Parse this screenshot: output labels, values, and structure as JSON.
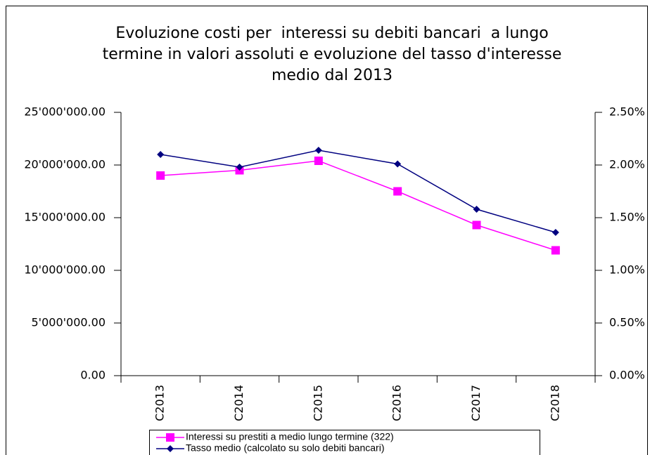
{
  "chart_data": {
    "type": "line",
    "title": [
      "Evoluzione costi per  interessi su debiti bancari  a lungo",
      "termine in valori assoluti e evoluzione del tasso d'interesse",
      "medio dal 2013"
    ],
    "categories": [
      "C2013",
      "C2014",
      "C2015",
      "C2016",
      "C2017",
      "C2018"
    ],
    "series": [
      {
        "name": "Interessi su prestiti a medio lungo termine (322)",
        "color": "#ff00ff",
        "marker": "square",
        "values": [
          19000000,
          19500000,
          20400000,
          17500000,
          14300000,
          11900000
        ]
      },
      {
        "name": "Tasso medio (calcolato su solo debiti bancari)",
        "color": "#000080",
        "marker": "diamond",
        "axis": "y2",
        "values": [
          2.1,
          1.98,
          2.14,
          2.01,
          1.58,
          1.36
        ]
      }
    ],
    "ylim": [
      0,
      25000000
    ],
    "yticks": [
      {
        "value": 0,
        "label": "0.00"
      },
      {
        "value": 5000000,
        "label": "5'000'000.00"
      },
      {
        "value": 10000000,
        "label": "10'000'000.00"
      },
      {
        "value": 15000000,
        "label": "15'000'000.00"
      },
      {
        "value": 20000000,
        "label": "20'000'000.00"
      },
      {
        "value": 25000000,
        "label": "25'000'000.00"
      }
    ],
    "y2lim": [
      0,
      2.5
    ],
    "y2ticks": [
      {
        "value": 0,
        "label": "0.00%"
      },
      {
        "value": 0.5,
        "label": "0.50%"
      },
      {
        "value": 1,
        "label": "1.00%"
      },
      {
        "value": 1.5,
        "label": "1.50%"
      },
      {
        "value": 2,
        "label": "2.00%"
      },
      {
        "value": 2.5,
        "label": "2.50%"
      }
    ],
    "legend": "bottom"
  }
}
